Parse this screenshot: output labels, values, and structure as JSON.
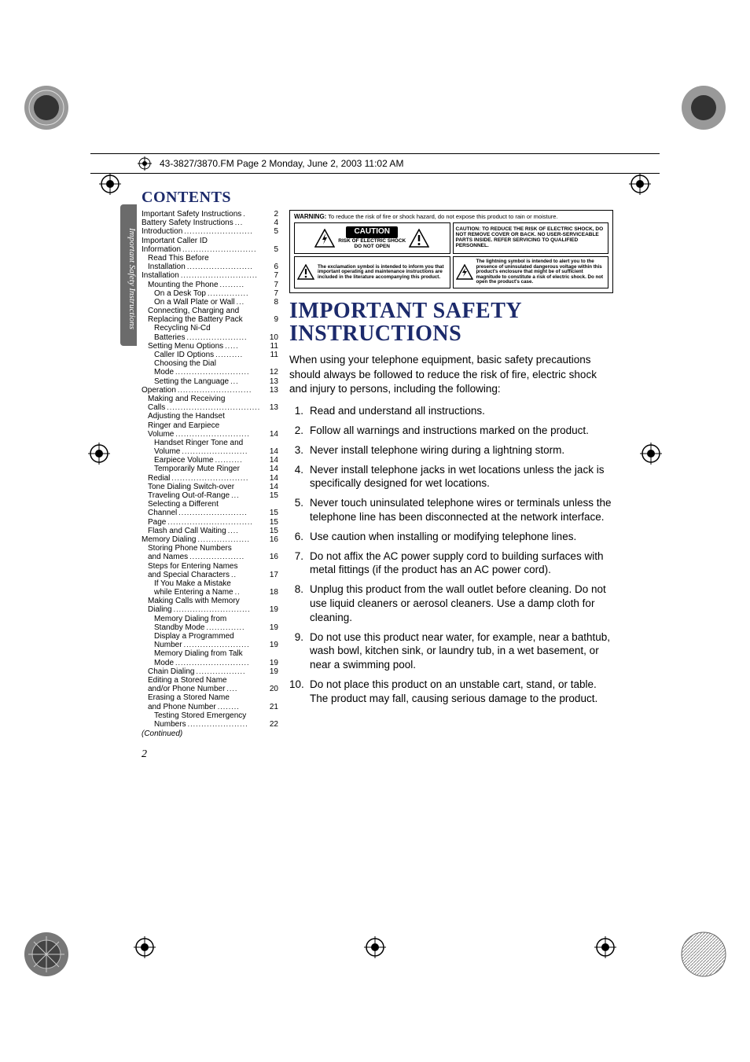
{
  "file_header": "43-3827/3870.FM  Page 2  Monday, June 2, 2003  11:02 AM",
  "sidebar_tab": "Important Safety Instructions",
  "contents_heading": "CONTENTS",
  "toc": [
    {
      "label": "Important Safety Instructions",
      "pg": "2",
      "lvl": 0,
      "dots": "."
    },
    {
      "label": "Battery Safety Instructions",
      "pg": "4",
      "lvl": 0,
      "dots": "..."
    },
    {
      "label": "Introduction",
      "pg": "5",
      "lvl": 0,
      "dots": "........................."
    },
    {
      "label": "Important Caller ID",
      "pg": "",
      "lvl": 0,
      "nodots": true
    },
    {
      "label": "Information",
      "pg": "5",
      "lvl": 0,
      "dots": "..........................."
    },
    {
      "label": "Read This Before",
      "pg": "",
      "lvl": 1,
      "nodots": true
    },
    {
      "label": "Installation",
      "pg": "6",
      "lvl": 1,
      "dots": "........................"
    },
    {
      "label": "Installation",
      "pg": "7",
      "lvl": 0,
      "dots": "............................"
    },
    {
      "label": "Mounting the Phone",
      "pg": "7",
      "lvl": 1,
      "dots": "........."
    },
    {
      "label": "On a Desk Top",
      "pg": "7",
      "lvl": 2,
      "dots": "..............."
    },
    {
      "label": "On a Wall Plate or Wall",
      "pg": "8",
      "lvl": 2,
      "dots": "..."
    },
    {
      "label": "Connecting, Charging and",
      "pg": "",
      "lvl": 1,
      "nodots": true
    },
    {
      "label": "Replacing the Battery Pack",
      "pg": "9",
      "lvl": 1,
      "dots": ""
    },
    {
      "label": "Recycling Ni-Cd",
      "pg": "",
      "lvl": 2,
      "nodots": true
    },
    {
      "label": "Batteries",
      "pg": "10",
      "lvl": 2,
      "dots": "......................"
    },
    {
      "label": "Setting Menu Options",
      "pg": "11",
      "lvl": 1,
      "dots": "....."
    },
    {
      "label": "Caller ID Options",
      "pg": "11",
      "lvl": 2,
      "dots": ".........."
    },
    {
      "label": "Choosing the Dial",
      "pg": "",
      "lvl": 2,
      "nodots": true
    },
    {
      "label": "Mode",
      "pg": "12",
      "lvl": 2,
      "dots": "..........................."
    },
    {
      "label": "Setting the Language",
      "pg": "13",
      "lvl": 2,
      "dots": "..."
    },
    {
      "label": "Operation",
      "pg": "13",
      "lvl": 0,
      "dots": "..........................."
    },
    {
      "label": "Making and Receiving",
      "pg": "",
      "lvl": 1,
      "nodots": true
    },
    {
      "label": "Calls",
      "pg": "13",
      "lvl": 1,
      "dots": ".................................."
    },
    {
      "label": "Adjusting the Handset",
      "pg": "",
      "lvl": 1,
      "nodots": true
    },
    {
      "label": "Ringer and Earpiece",
      "pg": "",
      "lvl": 1,
      "nodots": true
    },
    {
      "label": "Volume",
      "pg": "14",
      "lvl": 1,
      "dots": "..........................."
    },
    {
      "label": "Handset Ringer Tone and",
      "pg": "",
      "lvl": 2,
      "nodots": true
    },
    {
      "label": "Volume",
      "pg": "14",
      "lvl": 2,
      "dots": "........................"
    },
    {
      "label": "Earpiece Volume",
      "pg": "14",
      "lvl": 2,
      "dots": ".........."
    },
    {
      "label": "Temporarily Mute Ringer",
      "pg": "14",
      "lvl": 2,
      "dots": ""
    },
    {
      "label": "Redial",
      "pg": "14",
      "lvl": 1,
      "dots": "............................"
    },
    {
      "label": "Tone Dialing Switch-over",
      "pg": "14",
      "lvl": 1,
      "dots": ""
    },
    {
      "label": "Traveling Out-of-Range",
      "pg": "15",
      "lvl": 1,
      "dots": "..."
    },
    {
      "label": "Selecting a Different",
      "pg": "",
      "lvl": 1,
      "nodots": true
    },
    {
      "label": "Channel",
      "pg": "15",
      "lvl": 1,
      "dots": "........................."
    },
    {
      "label": "Page",
      "pg": "15",
      "lvl": 1,
      "dots": "..............................."
    },
    {
      "label": "Flash and Call Waiting",
      "pg": "15",
      "lvl": 1,
      "dots": "...."
    },
    {
      "label": "Memory Dialing",
      "pg": "16",
      "lvl": 0,
      "dots": "..................."
    },
    {
      "label": "Storing Phone Numbers",
      "pg": "",
      "lvl": 1,
      "nodots": true
    },
    {
      "label": "and Names",
      "pg": "16",
      "lvl": 1,
      "dots": "...................."
    },
    {
      "label": "Steps for Entering Names",
      "pg": "",
      "lvl": 1,
      "nodots": true
    },
    {
      "label": "and Special Characters",
      "pg": "17",
      "lvl": 1,
      "dots": ".."
    },
    {
      "label": "If You Make a Mistake",
      "pg": "",
      "lvl": 2,
      "nodots": true
    },
    {
      "label": "while Entering a Name",
      "pg": "18",
      "lvl": 2,
      "dots": ".."
    },
    {
      "label": "Making Calls with Memory",
      "pg": "",
      "lvl": 1,
      "nodots": true
    },
    {
      "label": "Dialing",
      "pg": "19",
      "lvl": 1,
      "dots": "............................"
    },
    {
      "label": "Memory Dialing from",
      "pg": "",
      "lvl": 2,
      "nodots": true
    },
    {
      "label": "Standby Mode",
      "pg": "19",
      "lvl": 2,
      "dots": ".............."
    },
    {
      "label": "Display a Programmed",
      "pg": "",
      "lvl": 2,
      "nodots": true
    },
    {
      "label": "Number",
      "pg": "19",
      "lvl": 2,
      "dots": "........................"
    },
    {
      "label": "Memory Dialing from Talk",
      "pg": "",
      "lvl": 2,
      "nodots": true
    },
    {
      "label": "Mode",
      "pg": "19",
      "lvl": 2,
      "dots": "..........................."
    },
    {
      "label": "Chain Dialing",
      "pg": "19",
      "lvl": 1,
      "dots": ".................."
    },
    {
      "label": "Editing a Stored Name",
      "pg": "",
      "lvl": 1,
      "nodots": true
    },
    {
      "label": "and/or Phone Number",
      "pg": "20",
      "lvl": 1,
      "dots": "...."
    },
    {
      "label": "Erasing a Stored Name",
      "pg": "",
      "lvl": 1,
      "nodots": true
    },
    {
      "label": "and Phone Number",
      "pg": "21",
      "lvl": 1,
      "dots": "........"
    },
    {
      "label": "Testing Stored Emergency",
      "pg": "",
      "lvl": 2,
      "nodots": true
    },
    {
      "label": "Numbers",
      "pg": "22",
      "lvl": 2,
      "dots": "......................"
    }
  ],
  "toc_continued": "(Continued)",
  "warning_box": {
    "top": {
      "bold": "WARNING:",
      "text": "To reduce the risk of fire or shock hazard, do not expose this product to rain or moisture."
    },
    "caution_label": "CAUTION",
    "caution_sub1": "RISK OF ELECTRIC SHOCK",
    "caution_sub2": "DO NOT OPEN",
    "caution_right": "CAUTION: TO REDUCE THE RISK OF ELECTRIC SHOCK, DO NOT REMOVE COVER OR BACK. NO USER-SERVICEABLE PARTS INSIDE. REFER SERVICING TO QUALIFIED PERSONNEL.",
    "excl_text": "The exclamation symbol is intended to inform you that important operating and maintenance instructions are included in the literature accompanying this product.",
    "bolt_text": "The lightning symbol is intended to alert you to the presence of uninsulated dangerous voltage within this product's enclosure that might be of sufficient magnitude to constitute a risk of electric shock. Do not open the product's case."
  },
  "main_title": "IMPORTANT SAFETY INSTRUCTIONS",
  "intro": "When using your telephone equipment, basic safety precautions should always be followed to reduce the risk of fire, electric shock and injury to persons, including the following:",
  "list": [
    "Read and understand all instructions.",
    "Follow all warnings and instructions marked on the product.",
    "Never install telephone wiring during a lightning storm.",
    "Never install telephone jacks in wet locations unless the jack is specifically designed for wet locations.",
    "Never touch uninsulated telephone wires or terminals unless the telephone line has been disconnected at the network interface.",
    "Use caution when installing or modifying telephone lines.",
    "Do not affix the AC power supply cord to building surfaces with metal fittings (if the product has an AC power cord).",
    "Unplug this product from the wall outlet before cleaning. Do not use liquid cleaners or aerosol cleaners. Use a damp cloth for cleaning.",
    "Do not use this product near water, for example, near a bathtub, wash bowl, kitchen sink, or laundry tub, in a wet basement, or near a swimming pool.",
    "Do not place this product on an unstable cart, stand, or table. The product may fall, causing serious damage to the product."
  ],
  "page_number": "2"
}
